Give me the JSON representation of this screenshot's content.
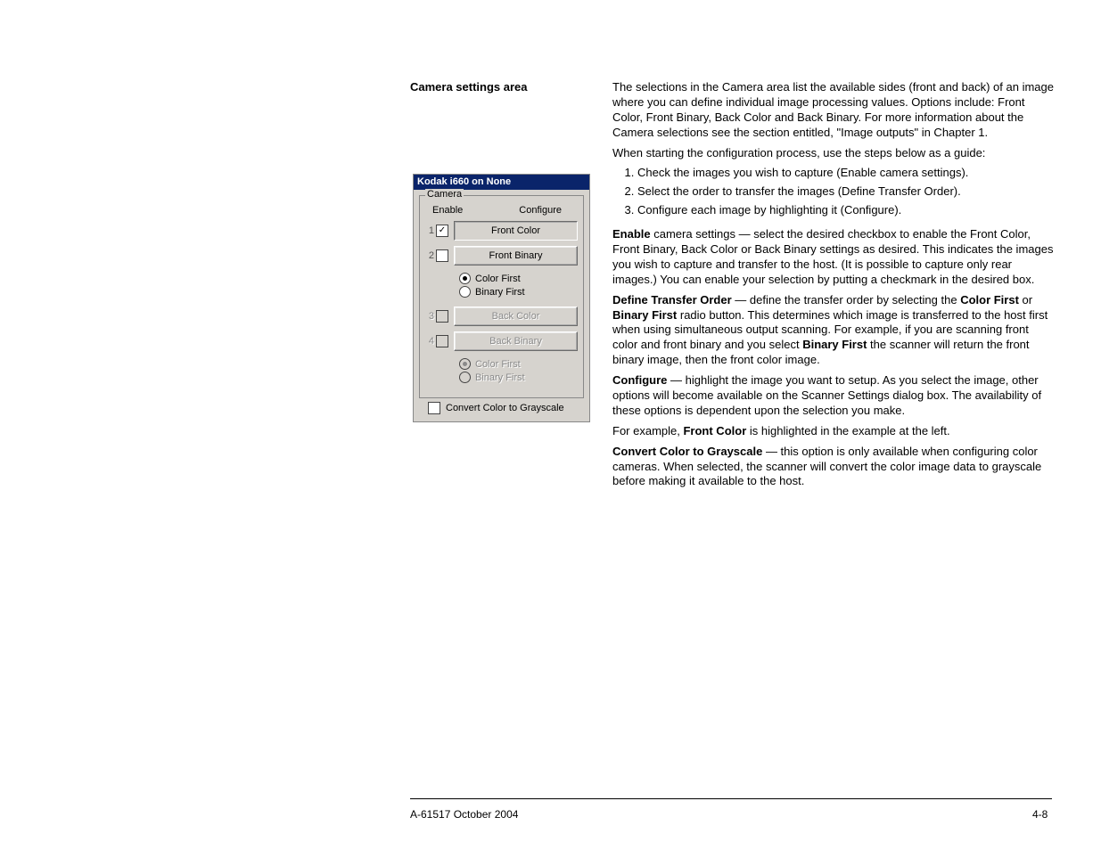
{
  "heading": "Camera settings area",
  "intro": "The selections in the Camera area list the available sides (front and back) of an image where you can define individual image processing values. Options include: Front Color, Front Binary, Back Color and Back Binary. For more information about the Camera selections see the section entitled, \"Image outputs\" in Chapter 1.",
  "when_starting": "When starting the configuration process, use the steps below as a guide:",
  "steps": [
    "Check the images you wish to capture (Enable camera settings).",
    "Select the order to transfer the images (Define Transfer Order).",
    "Configure each image by highlighting it (Configure)."
  ],
  "para_enable_lead": "Enable",
  "para_enable_rest": " camera settings — select the desired checkbox to enable the Front Color, Front Binary, Back Color or Back Binary settings as desired. This indicates the images you wish to capture and transfer to the host. (It is possible to capture only rear images.) You can enable your selection by putting a checkmark in the desired box.",
  "para_order_lead": "Define Transfer Order",
  "para_order_mid1": " — define the transfer order by selecting the ",
  "para_order_cf": "Color First",
  "para_order_or": " or ",
  "para_order_bf": "Binary First",
  "para_order_mid2": " radio button. This determines which image is transferred to the host first when using simultaneous output scanning. For example, if you are scanning front color and front binary and you select ",
  "para_order_bf2": "Binary First",
  "para_order_end": " the scanner will return the front binary image, then the front color image.",
  "para_cfg_lead": "Configure",
  "para_cfg_rest": " — highlight the image you want to setup. As you select the image, other options will become available on the Scanner Settings dialog box. The availability of these options is dependent upon the selection you make.",
  "para_ex_pre": "For example, ",
  "para_ex_bold": "Front Color",
  "para_ex_post": " is highlighted in the example at the left.",
  "para_gray_lead": "Convert Color to Grayscale",
  "para_gray_rest": " — this option is only available when configuring color cameras. When selected, the scanner will convert the color image data to grayscale before making it available to the host.",
  "footer_left": "A-61517 October 2004",
  "footer_right": "4-8",
  "dialog": {
    "title": "Kodak i660 on None",
    "group": "Camera",
    "hdr_enable": "Enable",
    "hdr_configure": "Configure",
    "rows": [
      {
        "num": "1",
        "checked": true,
        "enabled": true,
        "label": "Front Color",
        "selected": true
      },
      {
        "num": "2",
        "checked": false,
        "enabled": true,
        "label": "Front Binary",
        "selected": false
      }
    ],
    "radio1": {
      "color_first": "Color First",
      "binary_first": "Binary First",
      "selected": "color"
    },
    "rows2": [
      {
        "num": "3",
        "checked": false,
        "enabled": false,
        "label": "Back Color",
        "selected": false
      },
      {
        "num": "4",
        "checked": false,
        "enabled": false,
        "label": "Back Binary",
        "selected": false
      }
    ],
    "radio2": {
      "color_first": "Color First",
      "binary_first": "Binary First",
      "selected": "color",
      "disabled": true
    },
    "convert": "Convert Color to Grayscale"
  }
}
